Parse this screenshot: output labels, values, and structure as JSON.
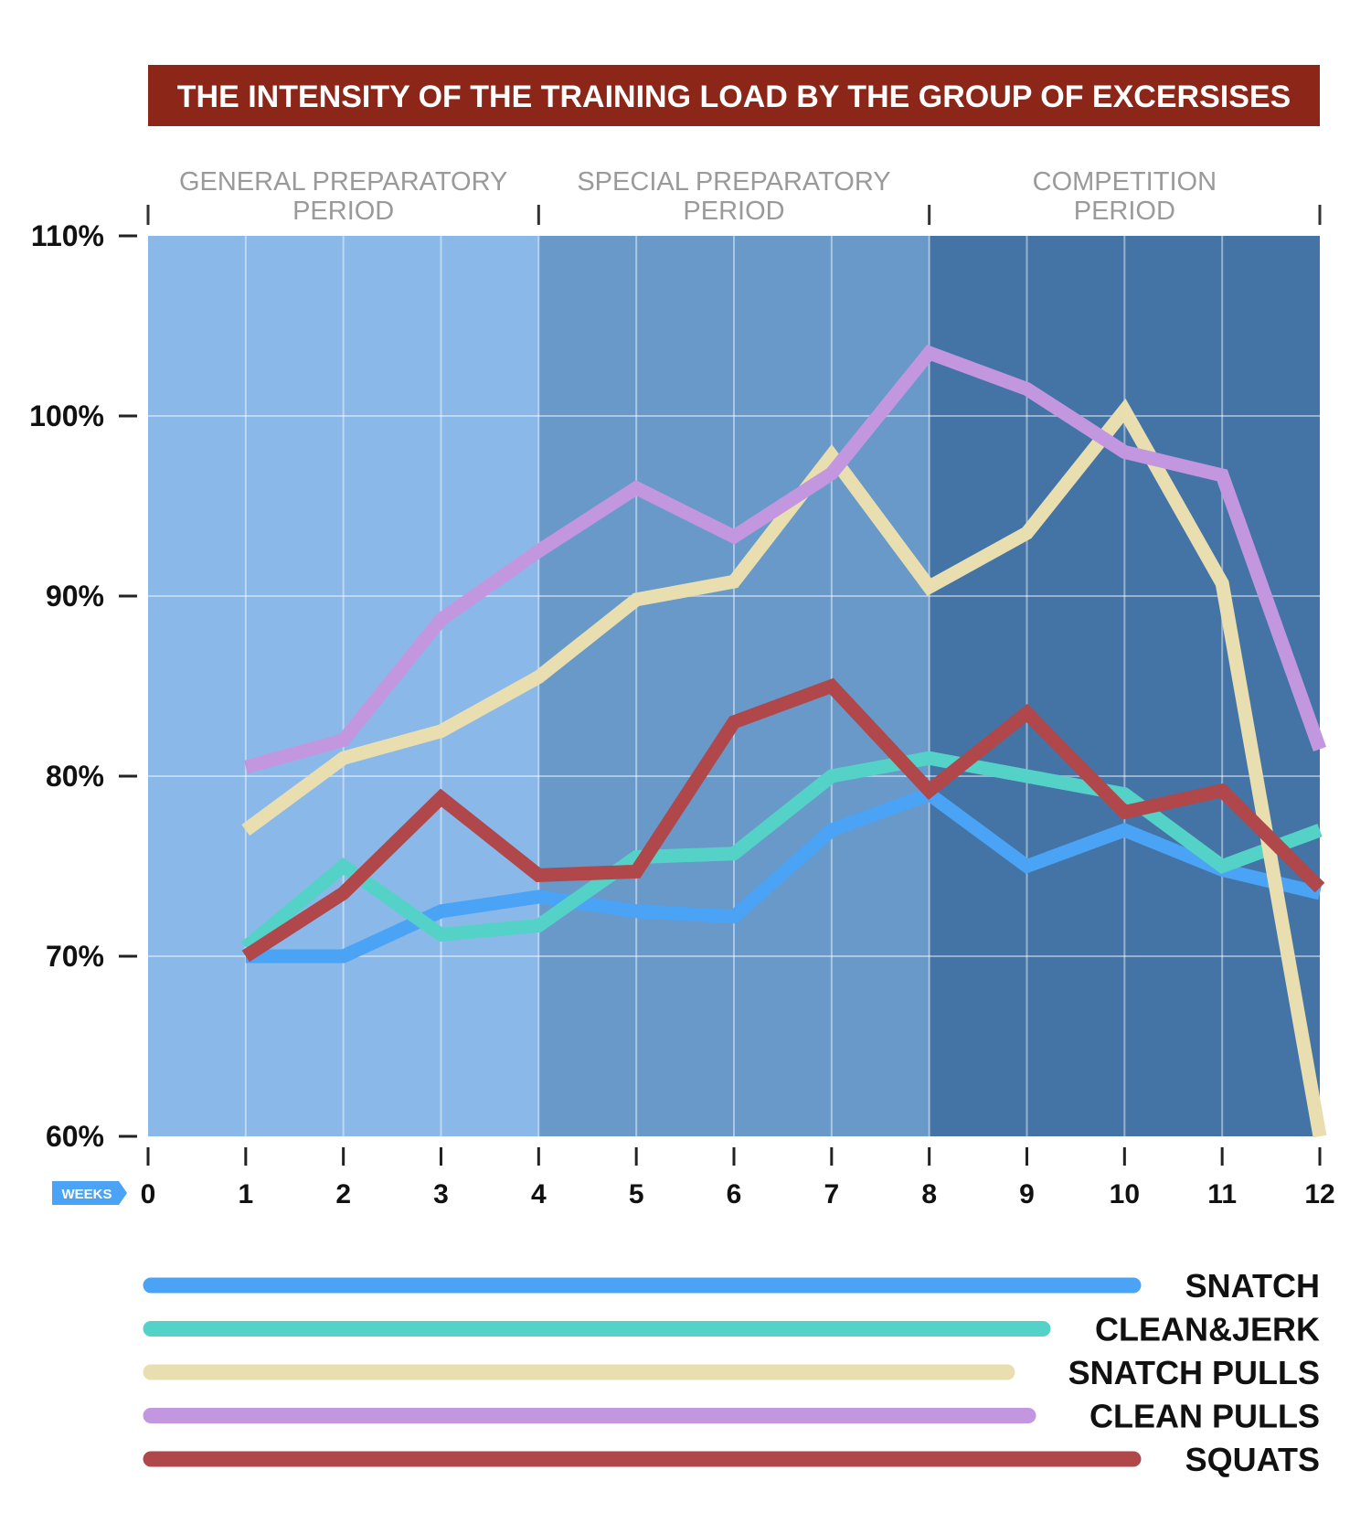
{
  "chart_data": {
    "type": "line",
    "title": "THE INTENSITY OF THE TRAINING LOAD BY THE GROUP OF EXCERSISES",
    "xlabel": "WEEKS",
    "ylabel": "",
    "x": [
      0,
      1,
      2,
      3,
      4,
      5,
      6,
      7,
      8,
      9,
      10,
      11,
      12
    ],
    "xlim": [
      0,
      12
    ],
    "ylim": [
      60,
      110
    ],
    "y_ticks": [
      "60%",
      "70%",
      "80%",
      "90%",
      "100%",
      "110%"
    ],
    "grid": true,
    "legend": "bottom",
    "periods": [
      {
        "line1": "GENERAL PREPARATORY",
        "line2": "PERIOD",
        "start": 0,
        "end": 4,
        "color": "#8ab8e8"
      },
      {
        "line1": "SPECIAL PREPARATORY",
        "line2": "PERIOD",
        "start": 4,
        "end": 8,
        "color": "#6899c9"
      },
      {
        "line1": "COMPETITION",
        "line2": "PERIOD",
        "start": 8,
        "end": 12,
        "color": "#4474a5"
      }
    ],
    "series": [
      {
        "name": "SNATCH",
        "color": "#4aa3f5",
        "points": [
          [
            1,
            70
          ],
          [
            2,
            70
          ],
          [
            3,
            72.5
          ],
          [
            4,
            73.3
          ],
          [
            5,
            72.5
          ],
          [
            6,
            72.2
          ],
          [
            7,
            77
          ],
          [
            8,
            79
          ],
          [
            9,
            75
          ],
          [
            10,
            77
          ],
          [
            11,
            74.8
          ],
          [
            12,
            73.5
          ]
        ]
      },
      {
        "name": "CLEAN&JERK",
        "color": "#55d2c8",
        "points": [
          [
            1,
            70.5
          ],
          [
            2,
            75
          ],
          [
            3,
            71.2
          ],
          [
            4,
            71.7
          ],
          [
            5,
            75.5
          ],
          [
            6,
            75.7
          ],
          [
            7,
            80
          ],
          [
            8,
            81
          ],
          [
            9,
            80
          ],
          [
            10,
            79
          ],
          [
            11,
            75
          ],
          [
            12,
            77
          ]
        ]
      },
      {
        "name": "SNATCH PULLS",
        "color": "#e8deb0",
        "points": [
          [
            1,
            77
          ],
          [
            2,
            81
          ],
          [
            3,
            82.5
          ],
          [
            4,
            85.5
          ],
          [
            5,
            89.8
          ],
          [
            6,
            90.8
          ],
          [
            7,
            97.8
          ],
          [
            8,
            90.5
          ],
          [
            9,
            93.5
          ],
          [
            10,
            100.3
          ],
          [
            11,
            90.7
          ],
          [
            12,
            60
          ]
        ]
      },
      {
        "name": "CLEAN PULLS",
        "color": "#c397df",
        "points": [
          [
            1,
            80.5
          ],
          [
            2,
            82
          ],
          [
            3,
            88.7
          ],
          [
            4,
            92.5
          ],
          [
            5,
            96
          ],
          [
            6,
            93.3
          ],
          [
            7,
            96.8
          ],
          [
            8,
            103.5
          ],
          [
            9,
            101.5
          ],
          [
            10,
            98
          ],
          [
            11,
            96.7
          ],
          [
            12,
            81.5
          ]
        ]
      },
      {
        "name": "SQUATS",
        "color": "#b0474a",
        "points": [
          [
            1,
            70
          ],
          [
            2,
            73.5
          ],
          [
            3,
            78.8
          ],
          [
            4,
            74.5
          ],
          [
            5,
            74.7
          ],
          [
            6,
            83
          ],
          [
            7,
            85
          ],
          [
            8,
            79.2
          ],
          [
            9,
            83.5
          ],
          [
            10,
            78
          ],
          [
            11,
            79.2
          ],
          [
            12,
            73.8
          ]
        ]
      }
    ],
    "legend_entries": [
      {
        "label": "SNATCH",
        "color": "#4aa3f5"
      },
      {
        "label": "CLEAN&JERK",
        "color": "#55d2c8"
      },
      {
        "label": "SNATCH PULLS",
        "color": "#e8deb0"
      },
      {
        "label": "CLEAN PULLS",
        "color": "#c397df"
      },
      {
        "label": "SQUATS",
        "color": "#b0474a"
      }
    ],
    "colors": {
      "title_bar": "#8b2619",
      "weeks_badge": "#4aa3f5"
    }
  }
}
